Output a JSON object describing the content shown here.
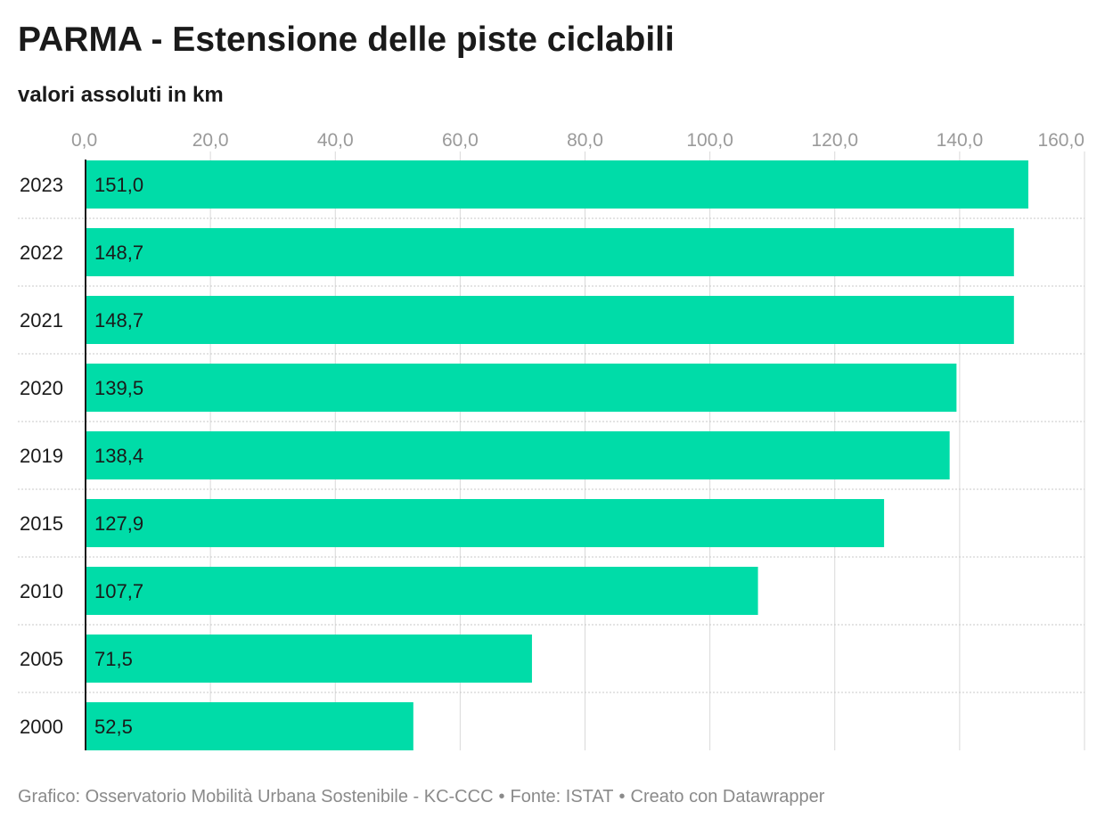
{
  "chart_data": {
    "type": "bar",
    "orientation": "horizontal",
    "title": "PARMA - Estensione delle piste ciclabili",
    "subtitle": "valori assoluti in km",
    "categories": [
      "2023",
      "2022",
      "2021",
      "2020",
      "2019",
      "2015",
      "2010",
      "2005",
      "2000"
    ],
    "values": [
      151.0,
      148.7,
      148.7,
      139.5,
      138.4,
      127.9,
      107.7,
      71.5,
      52.5
    ],
    "value_labels": [
      "151,0",
      "148,7",
      "148,7",
      "139,5",
      "138,4",
      "127,9",
      "107,7",
      "71,5",
      "52,5"
    ],
    "x_ticks": [
      0,
      20,
      40,
      60,
      80,
      100,
      120,
      140,
      160
    ],
    "x_tick_labels": [
      "0,0",
      "20,0",
      "40,0",
      "60,0",
      "80,0",
      "100,0",
      "120,0",
      "140,0",
      "160,0"
    ],
    "xlim": [
      0,
      160
    ],
    "axis_position": "top",
    "grid": true,
    "bar_color": "#00dca8",
    "xlabel": "",
    "ylabel": ""
  },
  "footer": {
    "credit": "Grafico: Osservatorio Mobilità Urbana Sostenibile - KC-CCC",
    "source": "Fonte: ISTAT",
    "tool": "Creato con Datawrapper",
    "separator": "•"
  }
}
